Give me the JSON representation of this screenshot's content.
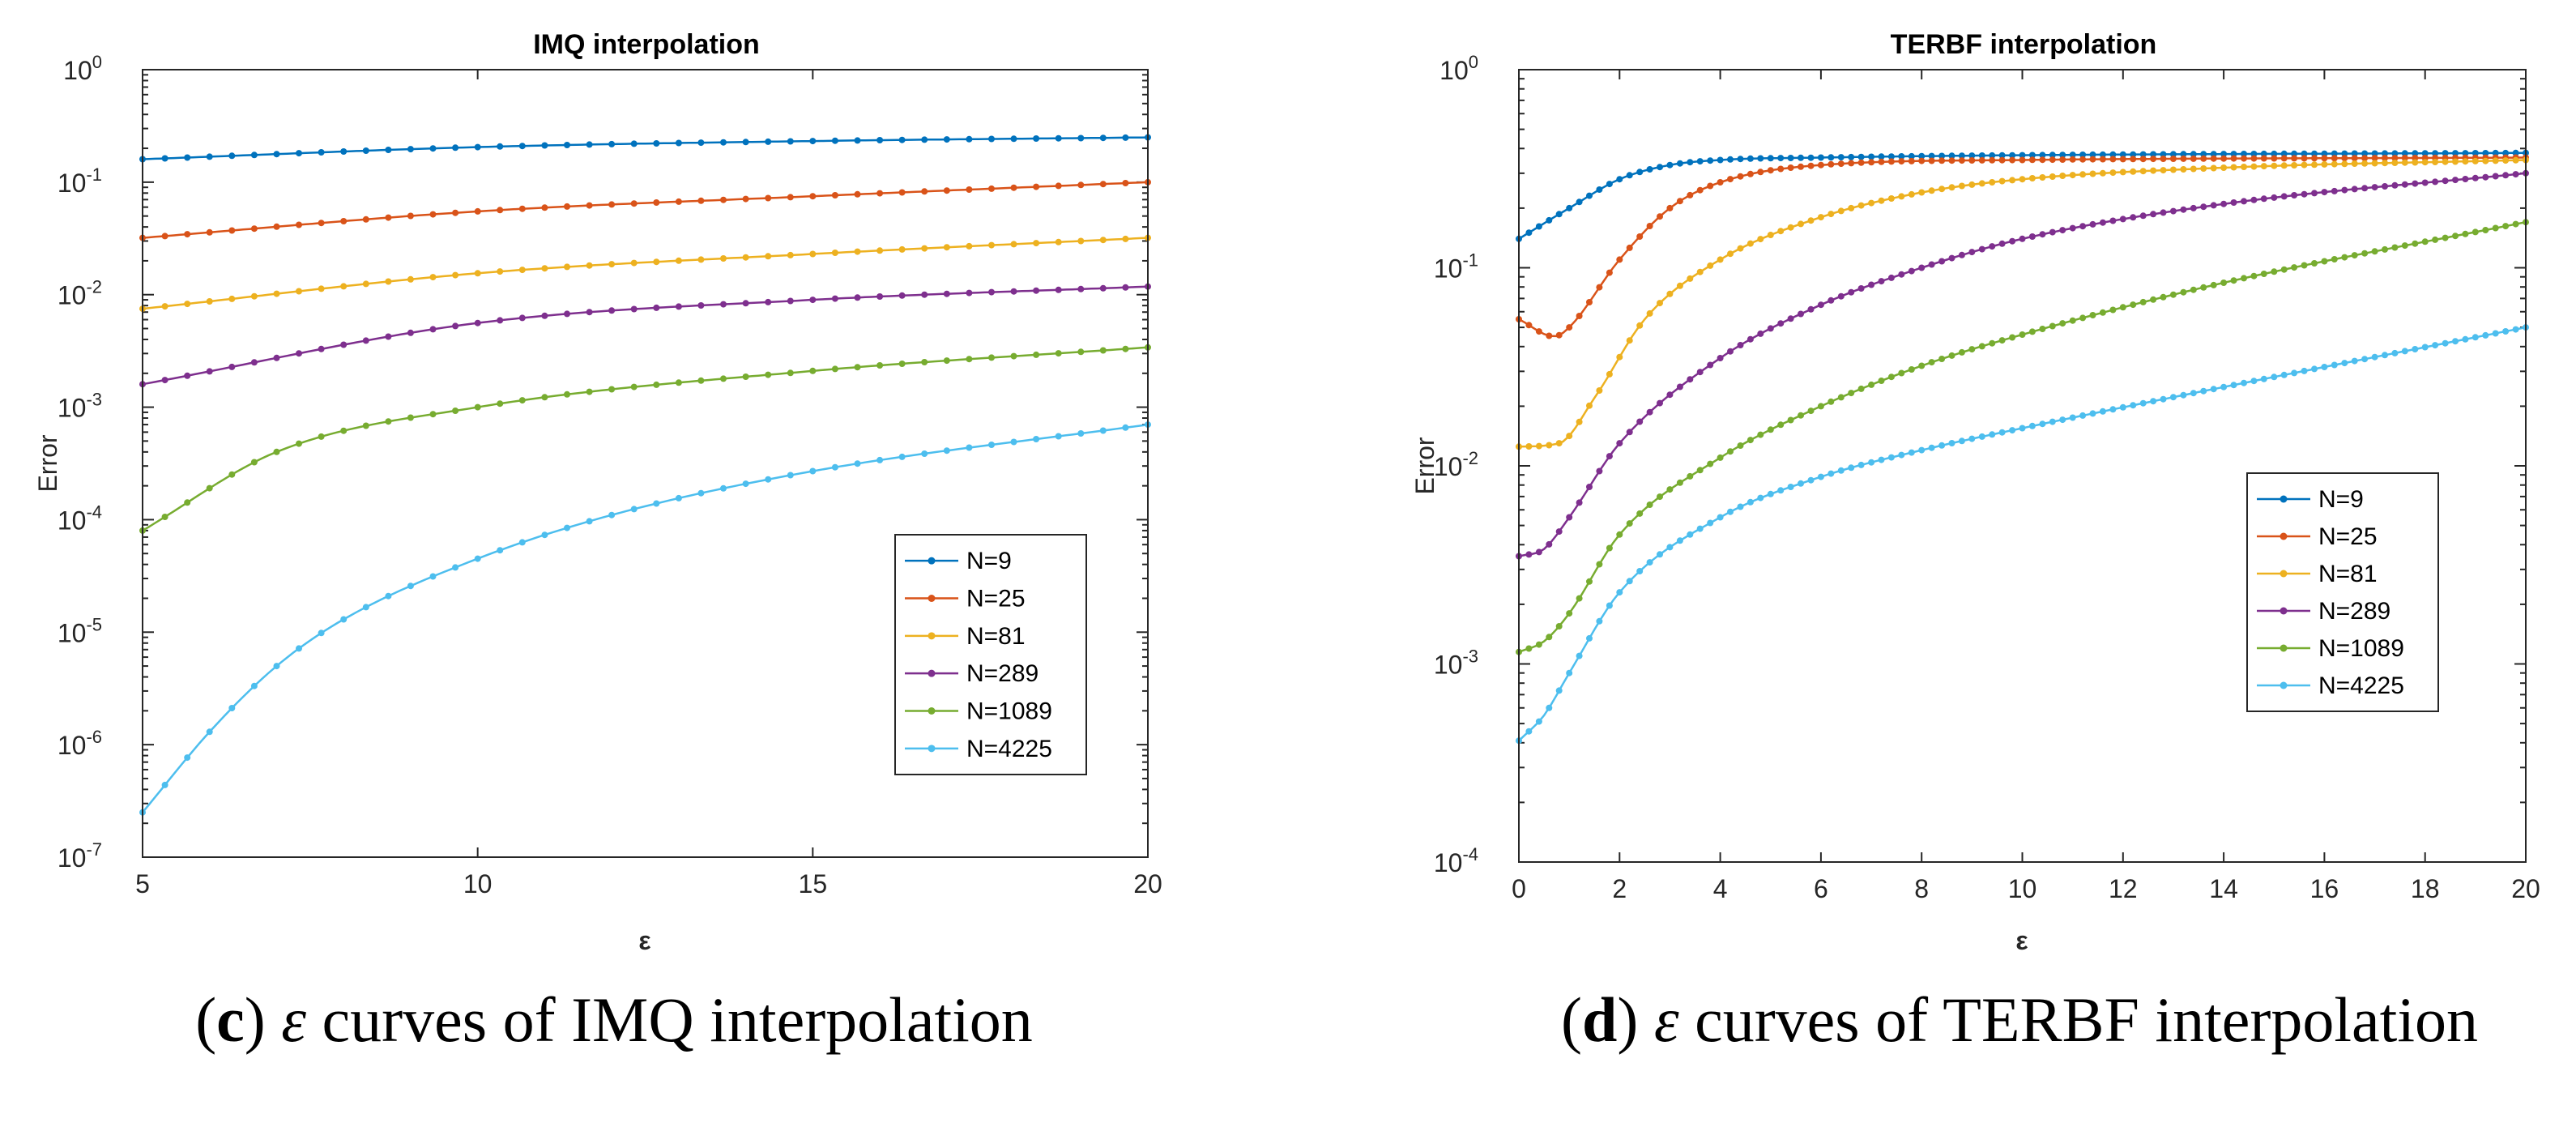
{
  "chart_data": [
    {
      "type": "line",
      "title": "IMQ interpolation",
      "xlabel": "ε",
      "ylabel": "Error",
      "xlim": [
        5,
        20
      ],
      "ylim": [
        1e-07,
        1
      ],
      "yscale": "log",
      "xticks": [
        "5",
        "10",
        "15",
        "20"
      ],
      "yticks": [
        {
          "base": "10",
          "exp": "0"
        },
        {
          "base": "10",
          "exp": "-1"
        },
        {
          "base": "10",
          "exp": "-2"
        },
        {
          "base": "10",
          "exp": "-3"
        },
        {
          "base": "10",
          "exp": "-4"
        },
        {
          "base": "10",
          "exp": "-5"
        },
        {
          "base": "10",
          "exp": "-6"
        },
        {
          "base": "10",
          "exp": "-7"
        }
      ],
      "legend_position": "lower-right",
      "caption": {
        "open": "(",
        "letter": "c",
        "close": ")",
        "eps": "ε",
        "text": " curves of IMQ interpolation"
      },
      "series": [
        {
          "name": "N=9",
          "color": "#0072BD",
          "x": [
            5,
            10,
            15,
            20
          ],
          "y": [
            0.16,
            0.205,
            0.232,
            0.25
          ]
        },
        {
          "name": "N=25",
          "color": "#D95319",
          "x": [
            5,
            10,
            15,
            20
          ],
          "y": [
            0.032,
            0.055,
            0.075,
            0.1
          ]
        },
        {
          "name": "N=81",
          "color": "#EDB120",
          "x": [
            5,
            10,
            15,
            20
          ],
          "y": [
            0.0075,
            0.0155,
            0.023,
            0.032
          ]
        },
        {
          "name": "N=289",
          "color": "#7E2F8E",
          "x": [
            5,
            10,
            15,
            20
          ],
          "y": [
            0.0016,
            0.0056,
            0.009,
            0.0118
          ]
        },
        {
          "name": "N=1089",
          "color": "#77AC30",
          "x": [
            5,
            7,
            10,
            15,
            20
          ],
          "y": [
            8e-05,
            0.0004,
            0.001,
            0.0021,
            0.0034
          ]
        },
        {
          "name": "N=4225",
          "color": "#4DBEEE",
          "x": [
            5,
            6,
            7,
            8,
            10,
            12,
            15,
            20
          ],
          "y": [
            2.5e-07,
            1.3e-06,
            5e-06,
            1.3e-05,
            4.5e-05,
            0.00011,
            0.00027,
            0.0007
          ]
        }
      ]
    },
    {
      "type": "line",
      "title": "TERBF interpolation",
      "xlabel": "ε",
      "ylabel": "Error",
      "xlim": [
        0,
        20
      ],
      "ylim": [
        0.0001,
        1
      ],
      "yscale": "log",
      "xticks": [
        "0",
        "2",
        "4",
        "6",
        "8",
        "10",
        "12",
        "14",
        "16",
        "18",
        "20"
      ],
      "yticks": [
        {
          "base": "10",
          "exp": "0"
        },
        {
          "base": "10",
          "exp": "-1"
        },
        {
          "base": "10",
          "exp": "-2"
        },
        {
          "base": "10",
          "exp": "-3"
        },
        {
          "base": "10",
          "exp": "-4"
        }
      ],
      "legend_position": "center-right",
      "caption": {
        "open": "(",
        "letter": "d",
        "close": ")",
        "eps": "ε",
        "text": " curves of TERBF interpolation"
      },
      "series": [
        {
          "name": "N=9",
          "color": "#0072BD",
          "x": [
            0,
            1,
            2,
            3,
            4,
            6,
            10,
            20
          ],
          "y": [
            0.14,
            0.2,
            0.28,
            0.33,
            0.35,
            0.36,
            0.37,
            0.38
          ]
        },
        {
          "name": "N=25",
          "color": "#D95319",
          "x": [
            0,
            0.7,
            1,
            2,
            3,
            4,
            6,
            10,
            20
          ],
          "y": [
            0.055,
            0.045,
            0.05,
            0.11,
            0.2,
            0.27,
            0.33,
            0.35,
            0.36
          ]
        },
        {
          "name": "N=81",
          "color": "#EDB120",
          "x": [
            0,
            0.8,
            1.5,
            2.5,
            4,
            6,
            8,
            10,
            14,
            20
          ],
          "y": [
            0.0125,
            0.013,
            0.022,
            0.055,
            0.11,
            0.18,
            0.24,
            0.28,
            0.32,
            0.35
          ]
        },
        {
          "name": "N=289",
          "color": "#7E2F8E",
          "x": [
            0,
            0.5,
            1,
            2,
            4,
            6,
            8,
            10,
            14,
            20
          ],
          "y": [
            0.0035,
            0.0038,
            0.0055,
            0.013,
            0.035,
            0.065,
            0.1,
            0.14,
            0.21,
            0.3
          ]
        },
        {
          "name": "N=1089",
          "color": "#77AC30",
          "x": [
            0,
            0.5,
            1,
            2,
            4,
            6,
            8,
            10,
            14,
            20
          ],
          "y": [
            0.00115,
            0.0013,
            0.0018,
            0.0045,
            0.011,
            0.02,
            0.032,
            0.046,
            0.084,
            0.17
          ]
        },
        {
          "name": "N=4225",
          "color": "#4DBEEE",
          "x": [
            0,
            0.5,
            1,
            2,
            4,
            6,
            8,
            10,
            14,
            20
          ],
          "y": [
            0.00041,
            0.00055,
            0.0009,
            0.0023,
            0.0055,
            0.0088,
            0.012,
            0.0155,
            0.025,
            0.05
          ]
        }
      ]
    }
  ]
}
